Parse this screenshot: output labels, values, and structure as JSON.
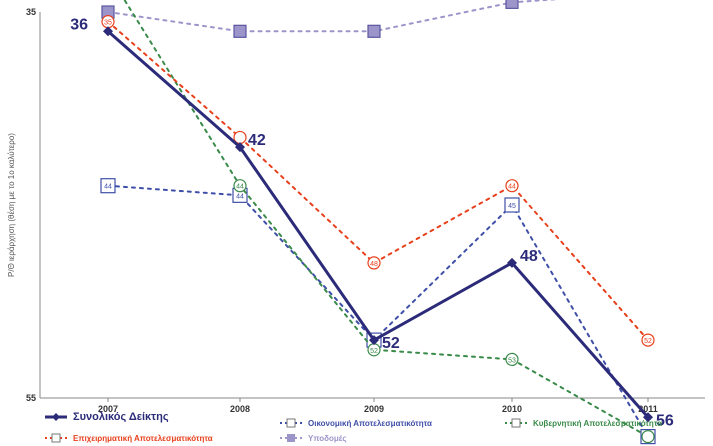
{
  "chart_data": {
    "type": "line",
    "x": [
      "2007",
      "2008",
      "2009",
      "2010",
      "2011"
    ],
    "ylim_ticks": [
      "35",
      "55"
    ],
    "ylabel": "Ρ/Θ ιεράρχηση (θέση με το 1ο καλύτερο)",
    "ylim": [
      35,
      55
    ],
    "grid": false,
    "legend_position": "bottom",
    "series": [
      {
        "name": "Συνολικός Δείκτης",
        "color": "#2b2b7a",
        "style": "solid",
        "marker": "diamond",
        "values": [
          36,
          42,
          52,
          48,
          56
        ],
        "labels": [
          "36",
          "42",
          "52",
          "48",
          "56"
        ]
      },
      {
        "name": "Οικονομική Αποτελεσματικότητα",
        "color": "#3f4fa8",
        "style": "dotted",
        "marker": "square-open",
        "values": [
          44,
          44.5,
          52,
          45,
          57
        ],
        "labels": [
          "44",
          "44",
          "",
          "45",
          "57"
        ]
      },
      {
        "name": "Κυβερνητική Αποτελεσματικότητα",
        "color": "#3a8a4a",
        "style": "dotted",
        "marker": "circle-open",
        "values": [
          33,
          44,
          52.5,
          53,
          57
        ],
        "labels": [
          "33",
          "44",
          "52",
          "53",
          ""
        ]
      },
      {
        "name": "Επιχειρηματική Αποτελεσματικότητα",
        "color": "#e8401c",
        "style": "dotted",
        "marker": "circle-open",
        "values": [
          35.5,
          41.5,
          48,
          44,
          52
        ],
        "labels": [
          "35",
          "",
          "48",
          "44",
          "52"
        ]
      },
      {
        "name": "Υποδομές",
        "color": "#9b95c9",
        "style": "dotted",
        "marker": "square-filled",
        "values": [
          35,
          36,
          36,
          34.5,
          34
        ],
        "labels": [
          "",
          "",
          "",
          "",
          ""
        ]
      }
    ]
  }
}
